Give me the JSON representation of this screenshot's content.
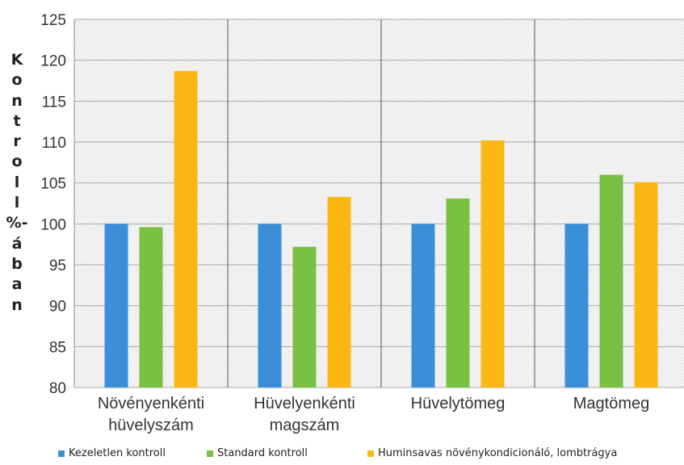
{
  "chart_data": {
    "type": "bar",
    "title": "",
    "xlabel": "",
    "ylabel": "Kontroll %-ában",
    "ylabel_lines": [
      "K",
      "o",
      "n",
      "t",
      "r",
      "o",
      "l",
      "l",
      "%-",
      "á",
      "b",
      "a",
      "n"
    ],
    "ylim": [
      80,
      125
    ],
    "yticks": [
      80,
      85,
      90,
      95,
      100,
      105,
      110,
      115,
      120,
      125
    ],
    "categories": [
      [
        "Növényenkénti",
        "hüvelyszám"
      ],
      [
        "Hüvelyenkénti",
        "magszám"
      ],
      [
        "Hüvelytömeg"
      ],
      [
        "Magtömeg"
      ]
    ],
    "series": [
      {
        "name": "Kezeletlen kontroll",
        "color": "#3b8fd9",
        "values": [
          100,
          100,
          100,
          100
        ]
      },
      {
        "name": "Standard kontroll",
        "color": "#7ac143",
        "values": [
          99.6,
          97.2,
          103.1,
          106.0
        ]
      },
      {
        "name": "Huminsavas növénykondicionáló, lombtrágya",
        "color": "#fbb714",
        "values": [
          118.7,
          103.3,
          110.2,
          105.1
        ]
      }
    ],
    "grid": true,
    "legend_position": "bottom"
  }
}
